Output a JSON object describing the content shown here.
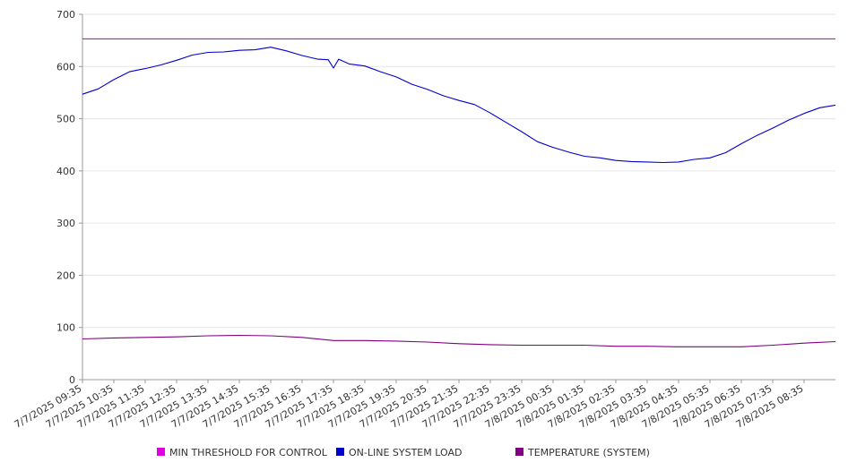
{
  "colors": {
    "threshold": "#e000e0",
    "load": "#0000cc",
    "temperature": "#800080",
    "grid": "#e6e6e6",
    "axis": "#999999"
  },
  "chart_data": {
    "type": "line",
    "title": "",
    "xlabel": "",
    "ylabel": "",
    "ylim": [
      0,
      700
    ],
    "yticks": [
      0,
      100,
      200,
      300,
      400,
      500,
      600,
      700
    ],
    "grid": "horizontal",
    "legend_position": "bottom",
    "x_ticks": [
      "7/7/2025 09:35",
      "7/7/2025 10:35",
      "7/7/2025 11:35",
      "7/7/2025 12:35",
      "7/7/2025 13:35",
      "7/7/2025 14:35",
      "7/7/2025 15:35",
      "7/7/2025 16:35",
      "7/7/2025 17:35",
      "7/7/2025 18:35",
      "7/7/2025 19:35",
      "7/7/2025 20:35",
      "7/7/2025 21:35",
      "7/7/2025 22:35",
      "7/7/2025 23:35",
      "7/8/2025 00:35",
      "7/8/2025 01:35",
      "7/8/2025 02:35",
      "7/8/2025 03:35",
      "7/8/2025 04:35",
      "7/8/2025 05:35",
      "7/8/2025 06:35",
      "7/8/2025 07:35",
      "7/8/2025 08:35"
    ],
    "series": [
      {
        "name": "MIN THRESHOLD FOR CONTROL",
        "color": "#e000e0",
        "x": [
          "7/7/2025 09:35",
          "7/8/2025 09:35"
        ],
        "values": [
          653,
          653
        ]
      },
      {
        "name": "ON-LINE SYSTEM LOAD",
        "color": "#0000cc",
        "x": [
          "7/7/2025 09:35",
          "7/7/2025 10:05",
          "7/7/2025 10:35",
          "7/7/2025 11:05",
          "7/7/2025 11:35",
          "7/7/2025 12:05",
          "7/7/2025 12:35",
          "7/7/2025 13:05",
          "7/7/2025 13:35",
          "7/7/2025 14:05",
          "7/7/2025 14:35",
          "7/7/2025 15:05",
          "7/7/2025 15:35",
          "7/7/2025 16:05",
          "7/7/2025 16:35",
          "7/7/2025 17:05",
          "7/7/2025 17:25",
          "7/7/2025 17:35",
          "7/7/2025 17:45",
          "7/7/2025 18:05",
          "7/7/2025 18:35",
          "7/7/2025 19:05",
          "7/7/2025 19:35",
          "7/7/2025 20:05",
          "7/7/2025 20:35",
          "7/7/2025 21:05",
          "7/7/2025 21:35",
          "7/7/2025 22:05",
          "7/7/2025 22:35",
          "7/7/2025 23:05",
          "7/7/2025 23:35",
          "7/8/2025 00:05",
          "7/8/2025 00:35",
          "7/8/2025 01:05",
          "7/8/2025 01:35",
          "7/8/2025 02:05",
          "7/8/2025 02:35",
          "7/8/2025 03:05",
          "7/8/2025 03:35",
          "7/8/2025 04:05",
          "7/8/2025 04:35",
          "7/8/2025 05:05",
          "7/8/2025 05:35",
          "7/8/2025 06:05",
          "7/8/2025 06:35",
          "7/8/2025 07:05",
          "7/8/2025 07:35",
          "7/8/2025 08:05",
          "7/8/2025 08:35",
          "7/8/2025 09:05",
          "7/8/2025 09:35"
        ],
        "values": [
          547,
          557,
          575,
          590,
          596,
          603,
          612,
          622,
          627,
          628,
          631,
          632,
          637,
          630,
          621,
          614,
          613,
          597,
          614,
          605,
          601,
          590,
          580,
          566,
          556,
          544,
          535,
          527,
          511,
          493,
          475,
          456,
          445,
          436,
          428,
          425,
          420,
          418,
          417,
          416,
          417,
          422,
          425,
          435,
          452,
          468,
          482,
          497,
          510,
          521,
          526
        ]
      },
      {
        "name": "TEMPERATURE (SYSTEM)",
        "color": "#800080",
        "x": [
          "7/7/2025 09:35",
          "7/7/2025 10:35",
          "7/7/2025 11:35",
          "7/7/2025 12:35",
          "7/7/2025 13:35",
          "7/7/2025 14:35",
          "7/7/2025 15:35",
          "7/7/2025 16:35",
          "7/7/2025 17:35",
          "7/7/2025 18:35",
          "7/7/2025 19:35",
          "7/7/2025 20:35",
          "7/7/2025 21:35",
          "7/7/2025 22:35",
          "7/7/2025 23:35",
          "7/8/2025 00:35",
          "7/8/2025 01:35",
          "7/8/2025 02:35",
          "7/8/2025 03:35",
          "7/8/2025 04:35",
          "7/8/2025 05:35",
          "7/8/2025 06:35",
          "7/8/2025 07:35",
          "7/8/2025 08:35",
          "7/8/2025 09:35"
        ],
        "values": [
          78,
          80,
          81,
          82,
          84,
          85,
          84,
          81,
          75,
          75,
          74,
          72,
          69,
          67,
          66,
          66,
          66,
          64,
          64,
          63,
          63,
          63,
          66,
          70,
          73
        ]
      }
    ]
  }
}
